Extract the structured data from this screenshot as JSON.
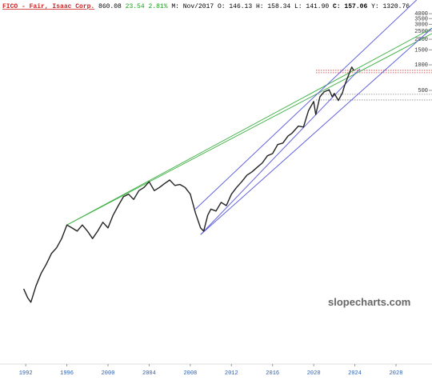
{
  "chart_data": {
    "type": "line",
    "log_scale": true,
    "title": "FICO - Fair, Isaac Corp.",
    "header": [
      "860.08",
      "23.54",
      "2.81%",
      "M: Nov/2017",
      "O: 146.13",
      "H: 158.34",
      "L: 141.90",
      "C: 157.06",
      "Y: 1320.76"
    ],
    "watermark": "slopecharts.com",
    "xlim": [
      1989.5,
      2031.5
    ],
    "xticks": [
      1992,
      1996,
      2000,
      2004,
      2008,
      2012,
      2016,
      2020,
      2024,
      2028
    ],
    "ylim": [
      0.3,
      5800
    ],
    "yticks": [
      500,
      1000,
      1500,
      2000,
      2500,
      3000,
      3500,
      4000
    ],
    "series": [
      {
        "color": "#222222",
        "x": [
          1991.8,
          1992.2,
          1992.5,
          1993.0,
          1993.5,
          1994.0,
          1994.5,
          1995.0,
          1995.5,
          1996.0,
          1996.5,
          1997.0,
          1997.5,
          1998.0,
          1998.5,
          1999.0,
          1999.5,
          2000.0,
          2000.5,
          2001.0,
          2001.5,
          2002.0,
          2002.5,
          2003.0,
          2003.5,
          2004.0,
          2004.5,
          2005.0,
          2005.5,
          2006.0,
          2006.5,
          2007.0,
          2007.5,
          2008.0,
          2008.5,
          2009.0,
          2009.3,
          2009.7,
          2010.0,
          2010.5,
          2011.0,
          2011.5,
          2012.0,
          2012.5,
          2013.0,
          2013.5,
          2014.0,
          2014.5,
          2015.0,
          2015.5,
          2016.0,
          2016.5,
          2017.0,
          2017.5,
          2017.9,
          2018.5,
          2019.0,
          2019.5,
          2020.0,
          2020.2,
          2020.6,
          2021.0,
          2021.5,
          2021.8,
          2022.0,
          2022.4,
          2022.8,
          2023.0,
          2023.5,
          2023.7,
          2023.9
        ],
        "values": [
          2.3,
          1.8,
          1.6,
          2.5,
          3.5,
          4.5,
          6,
          7,
          9,
          13,
          12,
          11,
          13,
          11,
          9,
          11,
          14,
          12,
          17,
          22,
          28,
          30,
          26,
          33,
          36,
          42,
          33,
          36,
          40,
          44,
          38,
          39,
          36,
          30,
          18,
          12,
          11,
          17,
          20,
          19,
          24,
          22,
          30,
          36,
          42,
          50,
          55,
          62,
          70,
          85,
          90,
          115,
          120,
          145,
          157,
          190,
          185,
          290,
          370,
          260,
          420,
          480,
          510,
          420,
          460,
          380,
          470,
          570,
          820,
          940,
          860
        ]
      }
    ],
    "trendlines": [
      {
        "color": "#3cb043",
        "x": [
          1996,
          2031.5
        ],
        "values": [
          13,
          2336
        ]
      },
      {
        "color": "#3cb043",
        "x": [
          1996,
          2031.5
        ],
        "values": [
          13,
          2700
        ]
      },
      {
        "color": "#5555dd",
        "x": [
          2009,
          2024.5
        ],
        "values": [
          10,
          900
        ]
      },
      {
        "color": "#5555dd",
        "x": [
          2008.5,
          2030
        ],
        "values": [
          20,
          5800
        ]
      },
      {
        "color": "#5555dd",
        "x": [
          2009,
          2031.5
        ],
        "values": [
          10,
          2700
        ]
      }
    ],
    "levels": [
      {
        "value": 861,
        "color": "#cc3333"
      },
      {
        "value": 808,
        "color": "#cc3333"
      },
      {
        "value": 450,
        "color": "#888888"
      },
      {
        "value": 386,
        "color": "#888888"
      }
    ]
  }
}
